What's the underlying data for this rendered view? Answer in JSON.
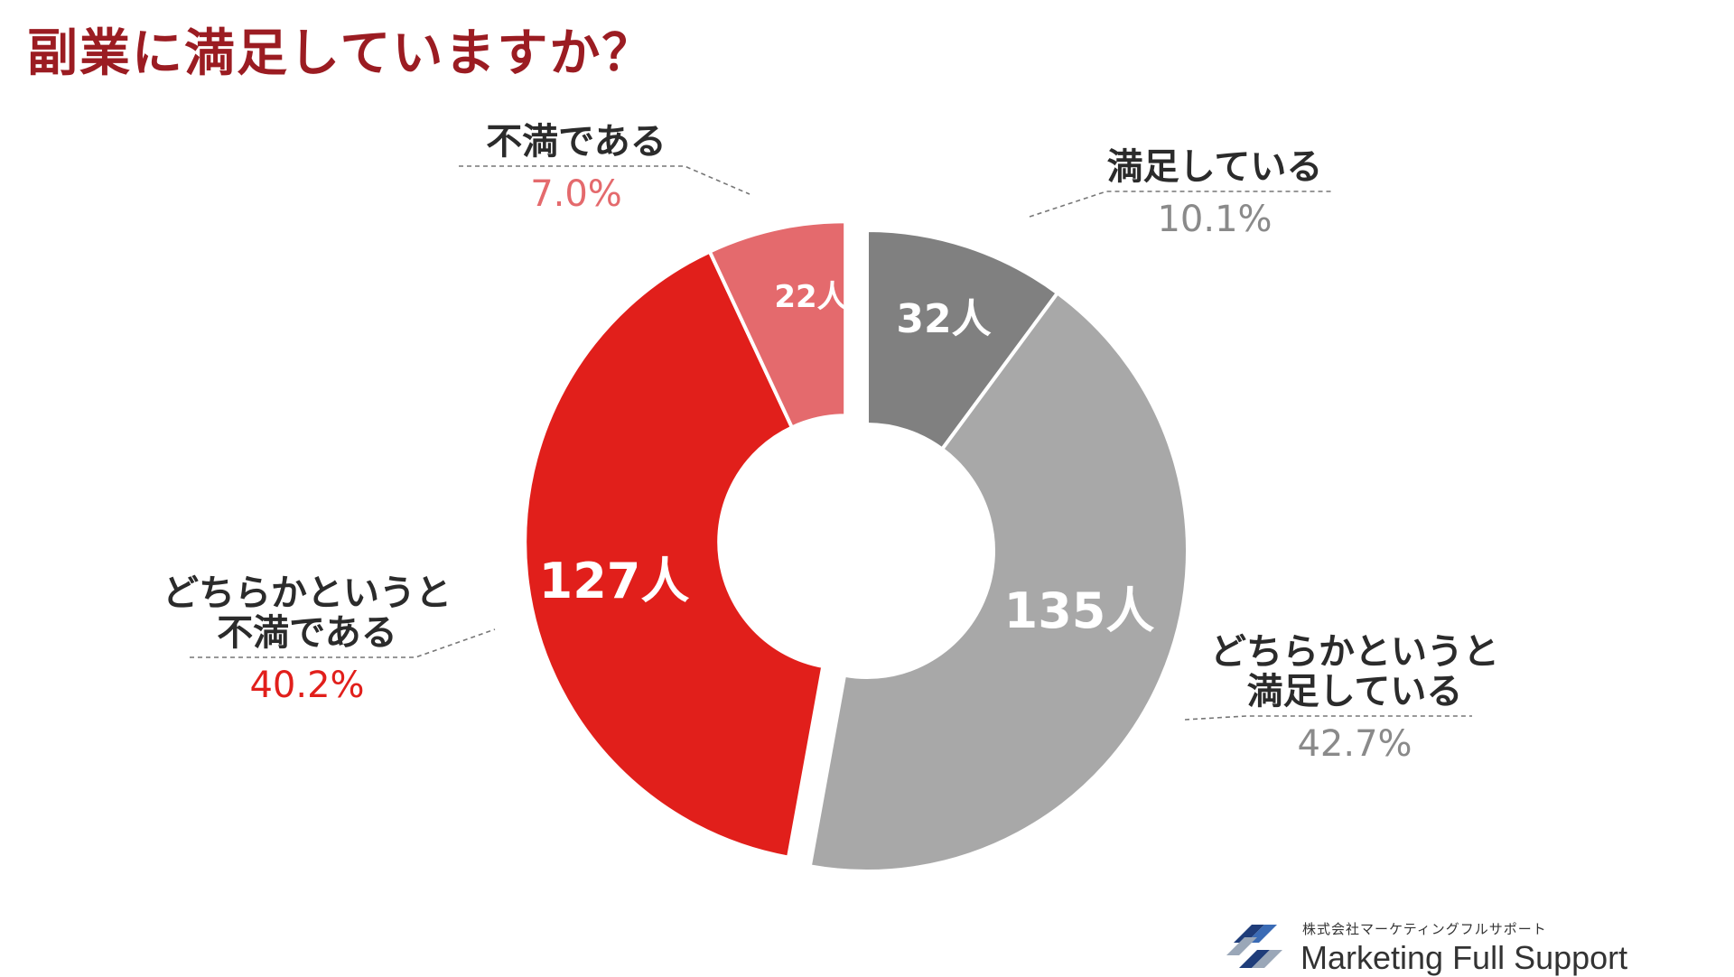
{
  "title": "副業に満足していますか？",
  "colors": {
    "title": "#9b1c22",
    "satisfied": "#808080",
    "somewhat_satisfied": "#a8a8a8",
    "somewhat_dissatisfied": "#e11f1b",
    "dissatisfied": "#e46a6d"
  },
  "chart_data": {
    "type": "pie",
    "variant": "donut",
    "slices": [
      {
        "label": "満足している",
        "lines": [
          "満足している"
        ],
        "count": 32,
        "count_label": "32人",
        "percent": 10.1,
        "percent_label": "10.1%",
        "color": "#808080",
        "label_side": "right"
      },
      {
        "label": "どちらかというと満足している",
        "lines": [
          "どちらかというと",
          "満足している"
        ],
        "count": 135,
        "count_label": "135人",
        "percent": 42.7,
        "percent_label": "42.7%",
        "color": "#a8a8a8",
        "label_side": "right"
      },
      {
        "label": "どちらかというと不満である",
        "lines": [
          "どちらかというと",
          "不満である"
        ],
        "count": 127,
        "count_label": "127人",
        "percent": 40.2,
        "percent_label": "40.2%",
        "color": "#e11f1b",
        "label_side": "left",
        "exploded": true
      },
      {
        "label": "不満である",
        "lines": [
          "不満である"
        ],
        "count": 22,
        "count_label": "22人",
        "percent": 7.0,
        "percent_label": "7.0%",
        "color": "#e46a6d",
        "label_side": "left",
        "exploded": true
      }
    ]
  },
  "logo": {
    "company": "株式会社マーケティングフルサポート",
    "name": "Marketing Full Support"
  }
}
